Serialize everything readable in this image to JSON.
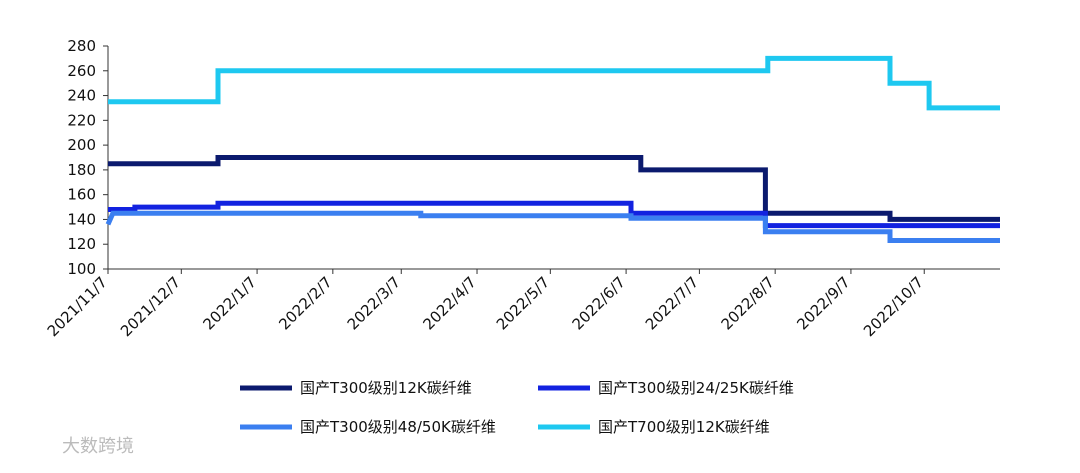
{
  "chart_data": {
    "type": "line",
    "xlim": [
      "2021/11/7",
      "2022/11/7"
    ],
    "xticks": [
      "2021/11/7",
      "2021/12/7",
      "2022/1/7",
      "2022/2/7",
      "2022/3/7",
      "2022/4/7",
      "2022/5/7",
      "2022/6/7",
      "2022/7/7",
      "2022/8/7",
      "2022/9/7",
      "2022/10/7"
    ],
    "ylim": [
      100,
      280
    ],
    "yticks": [
      100,
      120,
      140,
      160,
      180,
      200,
      220,
      240,
      260,
      280
    ],
    "grid": false,
    "series": [
      {
        "name": "国产T300级别12K碳纤维",
        "color": "#0b1a6e",
        "x": [
          "2021/11/7",
          "2021/12/22",
          "2021/12/22",
          "2022/6/13",
          "2022/6/13",
          "2022/8/3",
          "2022/8/3",
          "2022/9/23",
          "2022/9/23",
          "2022/11/7"
        ],
        "values": [
          185,
          185,
          190,
          190,
          180,
          180,
          145,
          145,
          140,
          140
        ]
      },
      {
        "name": "国产T300级别24/25K碳纤维",
        "color": "#1222e0",
        "x": [
          "2021/11/7",
          "2021/11/18",
          "2021/11/18",
          "2021/12/22",
          "2021/12/22",
          "2022/6/9",
          "2022/6/9",
          "2022/8/3",
          "2022/8/3",
          "2022/11/7"
        ],
        "values": [
          148,
          148,
          150,
          150,
          153,
          153,
          145,
          145,
          135,
          135
        ]
      },
      {
        "name": "国产T300级别48/50K碳纤维",
        "color": "#3b7ff0",
        "x": [
          "2021/11/7",
          "2021/11/9",
          "2022/3/15",
          "2022/3/15",
          "2022/6/9",
          "2022/6/9",
          "2022/8/3",
          "2022/8/3",
          "2022/9/23",
          "2022/9/23",
          "2022/11/7"
        ],
        "values": [
          136,
          145,
          145,
          143,
          143,
          141,
          141,
          130,
          130,
          123,
          123
        ]
      },
      {
        "name": "国产T700级别12K碳纤维",
        "color": "#1ec8f0",
        "x": [
          "2021/11/7",
          "2021/12/22",
          "2021/12/22",
          "2022/8/4",
          "2022/8/4",
          "2022/9/23",
          "2022/9/23",
          "2022/10/9",
          "2022/10/9",
          "2022/11/7"
        ],
        "values": [
          235,
          235,
          260,
          260,
          270,
          270,
          250,
          250,
          230,
          230
        ]
      }
    ]
  },
  "watermark": "大数跨境"
}
